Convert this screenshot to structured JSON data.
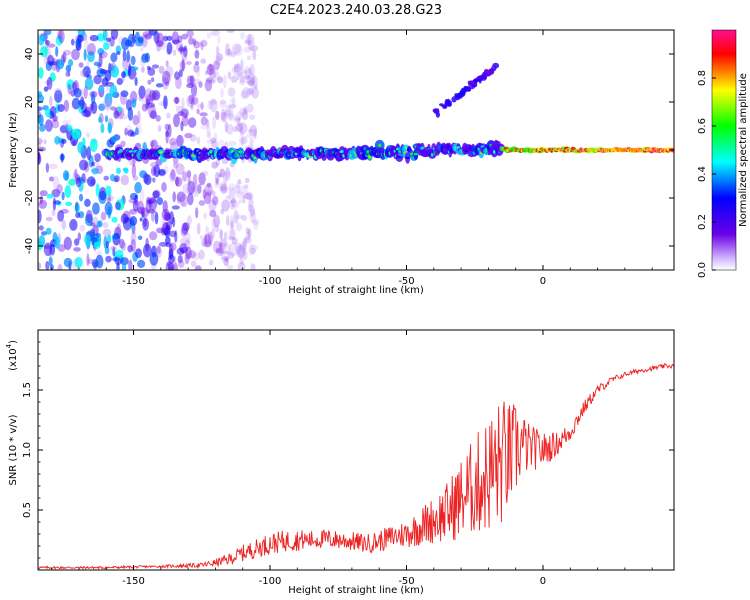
{
  "title": "C2E4.2023.240.03.28.G23",
  "colors": {
    "snr_line": "#ee2222",
    "axis": "#000000",
    "colormap": [
      "#ffffff",
      "#6a00e8",
      "#0000ff",
      "#00ffff",
      "#00ff00",
      "#ffff00",
      "#ff0000",
      "#ff1090"
    ]
  },
  "chart_data": [
    {
      "type": "heatmap",
      "name": "spectrogram",
      "xlabel": "Height of straight line (km)",
      "ylabel": "Frequency (Hz)",
      "xlim": [
        -185,
        48
      ],
      "ylim": [
        -50,
        50
      ],
      "xticks": [
        -150,
        -100,
        -50,
        0
      ],
      "yticks": [
        -40,
        -20,
        0,
        20,
        40
      ],
      "colorbar": {
        "label": "Normalized spectral amplitude",
        "range": [
          0,
          1
        ],
        "ticks": [
          "0.0",
          "0.2",
          "0.4",
          "0.6",
          "0.8"
        ]
      },
      "features": {
        "ridge_frequency_hz": 0,
        "ridge_start_km": -160,
        "strong_ridge_km": [
          -15,
          47
        ],
        "noise_region_km": [
          -185,
          -115
        ],
        "diagonal_branch": {
          "from_km": -40,
          "to_km": -17,
          "from_hz": 15,
          "to_hz": 35
        }
      }
    },
    {
      "type": "line",
      "name": "snr",
      "xlabel": "Height of straight line (km)",
      "ylabel": "SNR (10 * v/v)",
      "scale_label": "(x10",
      "scale_exponent": "4",
      "scale_close": ")",
      "xlim": [
        -185,
        48
      ],
      "ylim": [
        0,
        2
      ],
      "xticks": [
        -150,
        -100,
        -50,
        0
      ],
      "yticks": [
        0.5,
        1.0,
        1.5
      ],
      "ytick_labels": [
        "0.5",
        "1.0",
        "1.5"
      ],
      "series": [
        {
          "name": "SNR",
          "x": [
            -185,
            -160,
            -140,
            -125,
            -120,
            -115,
            -110,
            -105,
            -100,
            -95,
            -90,
            -85,
            -80,
            -75,
            -70,
            -65,
            -60,
            -55,
            -50,
            -45,
            -40,
            -35,
            -30,
            -25,
            -20,
            -17,
            -15,
            -12,
            -10,
            -8,
            -5,
            0,
            5,
            10,
            15,
            20,
            25,
            30,
            35,
            40,
            45,
            48
          ],
          "values": [
            0.02,
            0.02,
            0.03,
            0.04,
            0.06,
            0.09,
            0.14,
            0.18,
            0.22,
            0.24,
            0.25,
            0.25,
            0.26,
            0.25,
            0.24,
            0.22,
            0.24,
            0.28,
            0.3,
            0.36,
            0.42,
            0.48,
            0.6,
            0.7,
            0.8,
            0.85,
            0.9,
            0.95,
            1.0,
            1.05,
            1.02,
            1.0,
            1.05,
            1.15,
            1.35,
            1.5,
            1.58,
            1.63,
            1.66,
            1.68,
            1.7,
            1.7
          ],
          "noise": [
            0.01,
            0.01,
            0.01,
            0.02,
            0.03,
            0.05,
            0.07,
            0.08,
            0.09,
            0.09,
            0.09,
            0.08,
            0.08,
            0.08,
            0.08,
            0.08,
            0.09,
            0.1,
            0.12,
            0.16,
            0.2,
            0.26,
            0.34,
            0.42,
            0.5,
            0.56,
            0.55,
            0.45,
            0.4,
            0.3,
            0.2,
            0.15,
            0.1,
            0.08,
            0.06,
            0.04,
            0.03,
            0.02,
            0.02,
            0.02,
            0.02,
            0.02
          ]
        }
      ]
    }
  ]
}
